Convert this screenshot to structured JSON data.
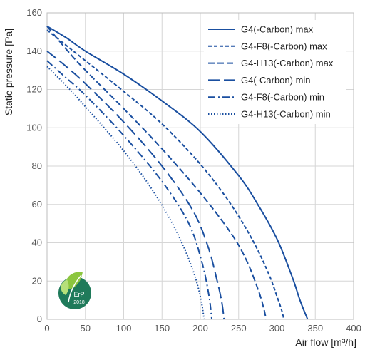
{
  "chart_data": {
    "type": "line",
    "xlabel": "Air flow [m³/h]",
    "ylabel": "Static pressure [Pa]",
    "xlim": [
      0,
      400
    ],
    "ylim": [
      0,
      160
    ],
    "xticks": [
      0,
      50,
      100,
      150,
      200,
      250,
      300,
      350,
      400
    ],
    "yticks": [
      0,
      20,
      40,
      60,
      80,
      100,
      120,
      140,
      160
    ],
    "grid": true,
    "legend_position": "top-right",
    "series_color": "#1a4fa0",
    "series": [
      {
        "name": "G4(-Carbon) max",
        "dash": "solid",
        "x": [
          0,
          25,
          50,
          100,
          150,
          200,
          250,
          275,
          300,
          320,
          330,
          340
        ],
        "y": [
          153,
          147,
          140,
          128,
          114,
          98,
          75,
          60,
          42,
          22,
          10,
          0
        ]
      },
      {
        "name": "G4-F8(-Carbon) max",
        "dash": "short-dash",
        "x": [
          0,
          25,
          50,
          100,
          150,
          200,
          240,
          270,
          290,
          300,
          306,
          309
        ],
        "y": [
          151,
          143,
          135,
          119,
          102,
          81,
          60,
          40,
          23,
          12,
          5,
          0
        ]
      },
      {
        "name": "G4-H13(-Carbon) max",
        "dash": "dash",
        "x": [
          0,
          25,
          50,
          100,
          150,
          200,
          240,
          260,
          275,
          282,
          286
        ],
        "y": [
          153,
          141,
          130,
          110,
          89,
          66,
          45,
          31,
          16,
          7,
          0
        ]
      },
      {
        "name": "G4(-Carbon) min",
        "dash": "long-dash",
        "x": [
          0,
          25,
          50,
          100,
          150,
          190,
          210,
          222,
          228,
          231
        ],
        "y": [
          140,
          132,
          123,
          103,
          80,
          57,
          38,
          20,
          9,
          0
        ]
      },
      {
        "name": "G4-F8(-Carbon) min",
        "dash": "dash-dot",
        "x": [
          0,
          25,
          50,
          100,
          150,
          185,
          202,
          211,
          215
        ],
        "y": [
          135,
          126,
          117,
          96,
          72,
          50,
          30,
          13,
          0
        ]
      },
      {
        "name": "G4-H13(-Carbon) min",
        "dash": "dotted",
        "x": [
          0,
          25,
          50,
          100,
          140,
          170,
          190,
          200,
          205
        ],
        "y": [
          132,
          122,
          111,
          88,
          66,
          45,
          26,
          12,
          0
        ]
      }
    ]
  },
  "badge": {
    "label": "ErP",
    "year": "2018",
    "color": "#1f7a5a",
    "leaf_color": "#8cc63f"
  }
}
